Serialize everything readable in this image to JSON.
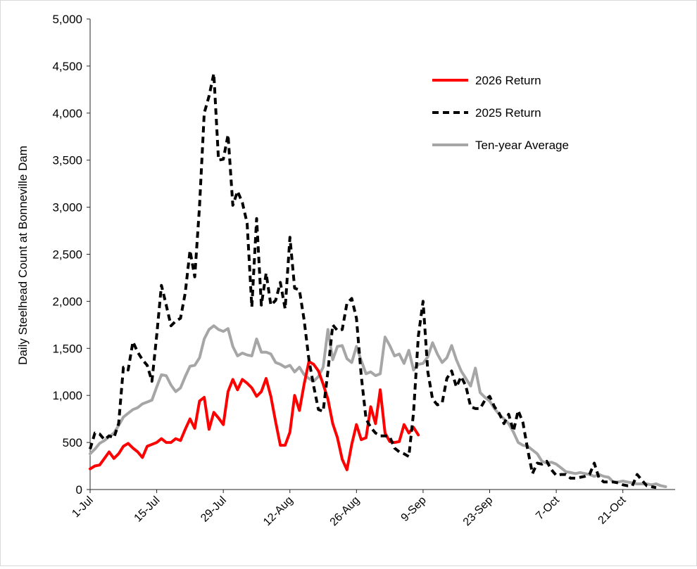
{
  "chart_data": {
    "type": "line",
    "ylabel": "Daily Steelhead Count at Bonneville Dam",
    "xlabel": "",
    "ylim": [
      0,
      5000
    ],
    "yticks": [
      0,
      500,
      1000,
      1500,
      2000,
      2500,
      3000,
      3500,
      4000,
      4500,
      5000
    ],
    "ytick_labels": [
      "0",
      "500",
      "1,000",
      "1,500",
      "2,000",
      "2,500",
      "3,000",
      "3,500",
      "4,000",
      "4,500",
      "5,000"
    ],
    "xlim_days": [
      0,
      123
    ],
    "xticks": [
      {
        "day": 0,
        "label": "1-Jul"
      },
      {
        "day": 14,
        "label": "15-Jul"
      },
      {
        "day": 28,
        "label": "29-Jul"
      },
      {
        "day": 42,
        "label": "12-Aug"
      },
      {
        "day": 56,
        "label": "26-Aug"
      },
      {
        "day": 70,
        "label": "9-Sep"
      },
      {
        "day": 84,
        "label": "23-Sep"
      },
      {
        "day": 98,
        "label": "7-Oct"
      },
      {
        "day": 112,
        "label": "21-Oct"
      }
    ],
    "grid": false,
    "legend_position": "top-right",
    "series": [
      {
        "name": "2026 Return",
        "color": "#ff0000",
        "style": "solid",
        "values": [
          220,
          250,
          260,
          330,
          400,
          330,
          380,
          460,
          490,
          440,
          400,
          340,
          460,
          480,
          500,
          540,
          500,
          500,
          540,
          520,
          640,
          750,
          650,
          940,
          980,
          640,
          820,
          760,
          690,
          1040,
          1170,
          1060,
          1170,
          1130,
          1080,
          990,
          1040,
          1180,
          990,
          720,
          470,
          470,
          610,
          1000,
          840,
          1120,
          1360,
          1330,
          1260,
          1120,
          960,
          700,
          550,
          320,
          210,
          480,
          690,
          530,
          550,
          880,
          700,
          1060,
          600,
          510,
          500,
          510,
          690,
          600,
          660,
          580
        ]
      },
      {
        "name": "2025 Return",
        "color": "#000000",
        "style": "dashed",
        "values": [
          430,
          600,
          590,
          530,
          570,
          550,
          700,
          1300,
          1270,
          1570,
          1460,
          1380,
          1320,
          1150,
          1640,
          2170,
          1960,
          1740,
          1790,
          1820,
          2090,
          2540,
          2260,
          3010,
          4000,
          4180,
          4420,
          3500,
          3510,
          3770,
          3020,
          3170,
          3050,
          2830,
          1940,
          2880,
          1960,
          2300,
          1960,
          2010,
          2200,
          1920,
          2680,
          2140,
          2120,
          1800,
          1380,
          1100,
          850,
          830,
          1260,
          1750,
          1690,
          1700,
          1980,
          2030,
          1820,
          1210,
          750,
          660,
          600,
          570,
          570,
          560,
          440,
          400,
          380,
          350,
          820,
          1630,
          2000,
          1250,
          960,
          900,
          920,
          1180,
          1260,
          1090,
          1200,
          1100,
          880,
          860,
          860,
          950,
          990,
          880,
          810,
          700,
          800,
          620,
          840,
          710,
          420,
          170,
          280,
          270,
          300,
          210,
          150,
          160,
          160,
          120,
          120,
          130,
          140,
          160,
          280,
          120,
          80,
          80,
          80,
          70,
          50,
          40,
          40,
          160,
          100,
          40,
          30,
          20
        ]
      },
      {
        "name": "Ten-year Average",
        "color": "#a6a6a6",
        "style": "solid",
        "values": [
          380,
          430,
          490,
          520,
          560,
          600,
          680,
          770,
          810,
          850,
          870,
          910,
          930,
          950,
          1090,
          1220,
          1210,
          1110,
          1040,
          1080,
          1200,
          1310,
          1320,
          1400,
          1600,
          1700,
          1740,
          1700,
          1680,
          1710,
          1520,
          1420,
          1450,
          1430,
          1420,
          1600,
          1460,
          1460,
          1440,
          1350,
          1330,
          1300,
          1320,
          1250,
          1300,
          1220,
          1180,
          1150,
          1200,
          1300,
          1700,
          1380,
          1520,
          1530,
          1390,
          1350,
          1520,
          1370,
          1230,
          1250,
          1210,
          1230,
          1620,
          1530,
          1420,
          1440,
          1340,
          1480,
          1270,
          1330,
          1340,
          1410,
          1560,
          1440,
          1350,
          1400,
          1530,
          1380,
          1260,
          1180,
          1100,
          1290,
          1030,
          980,
          940,
          860,
          800,
          750,
          700,
          610,
          500,
          470,
          460,
          420,
          380,
          300,
          280,
          290,
          270,
          230,
          190,
          180,
          170,
          180,
          170,
          160,
          140,
          160,
          140,
          130,
          80,
          80,
          90,
          80,
          70,
          60,
          60,
          60,
          50,
          60,
          40,
          30
        ]
      }
    ]
  }
}
